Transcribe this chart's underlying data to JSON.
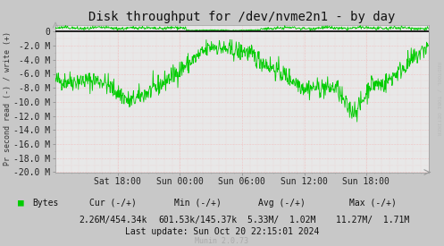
{
  "title": "Disk throughput for /dev/nvme2n1 - by day",
  "ylabel": "Pr second read (-) / write (+)",
  "background_color": "#c8c8c8",
  "plot_bg_color": "#e8e8e8",
  "grid_color": "#ff8888",
  "line_color": "#00cc00",
  "zero_line_color": "#000000",
  "ylim": [
    -20000000,
    1000000
  ],
  "yticks": [
    0,
    -2000000,
    -4000000,
    -6000000,
    -8000000,
    -10000000,
    -12000000,
    -14000000,
    -16000000,
    -18000000,
    -20000000
  ],
  "ytick_labels": [
    "0",
    "-2.0 M",
    "-4.0 M",
    "-6.0 M",
    "-8.0 M",
    "-10.0 M",
    "-12.0 M",
    "-14.0 M",
    "-16.0 M",
    "-18.0 M",
    "-20.0 M"
  ],
  "xtick_positions": [
    0.167,
    0.333,
    0.5,
    0.667,
    0.833
  ],
  "xtick_labels": [
    "Sat 18:00",
    "Sun 00:00",
    "Sun 06:00",
    "Sun 12:00",
    "Sun 18:00"
  ],
  "legend_label": "Bytes",
  "legend_color": "#00cc00",
  "cur_label": "Cur (-/+)",
  "cur_value": "2.26M/454.34k",
  "min_label": "Min (-/+)",
  "min_value": "601.53k/145.37k",
  "avg_label": "Avg (-/+)",
  "avg_value": "5.33M/  1.02M",
  "max_label": "Max (-/+)",
  "max_value": "11.27M/  1.71M",
  "last_update": "Last update: Sun Oct 20 22:15:01 2024",
  "munin_label": "Munin 2.0.73",
  "rrdtool_label": "RRDTOOL / TOBI OETIKER",
  "title_fontsize": 10,
  "axis_fontsize": 7,
  "small_fontsize": 6,
  "num_points": 800
}
